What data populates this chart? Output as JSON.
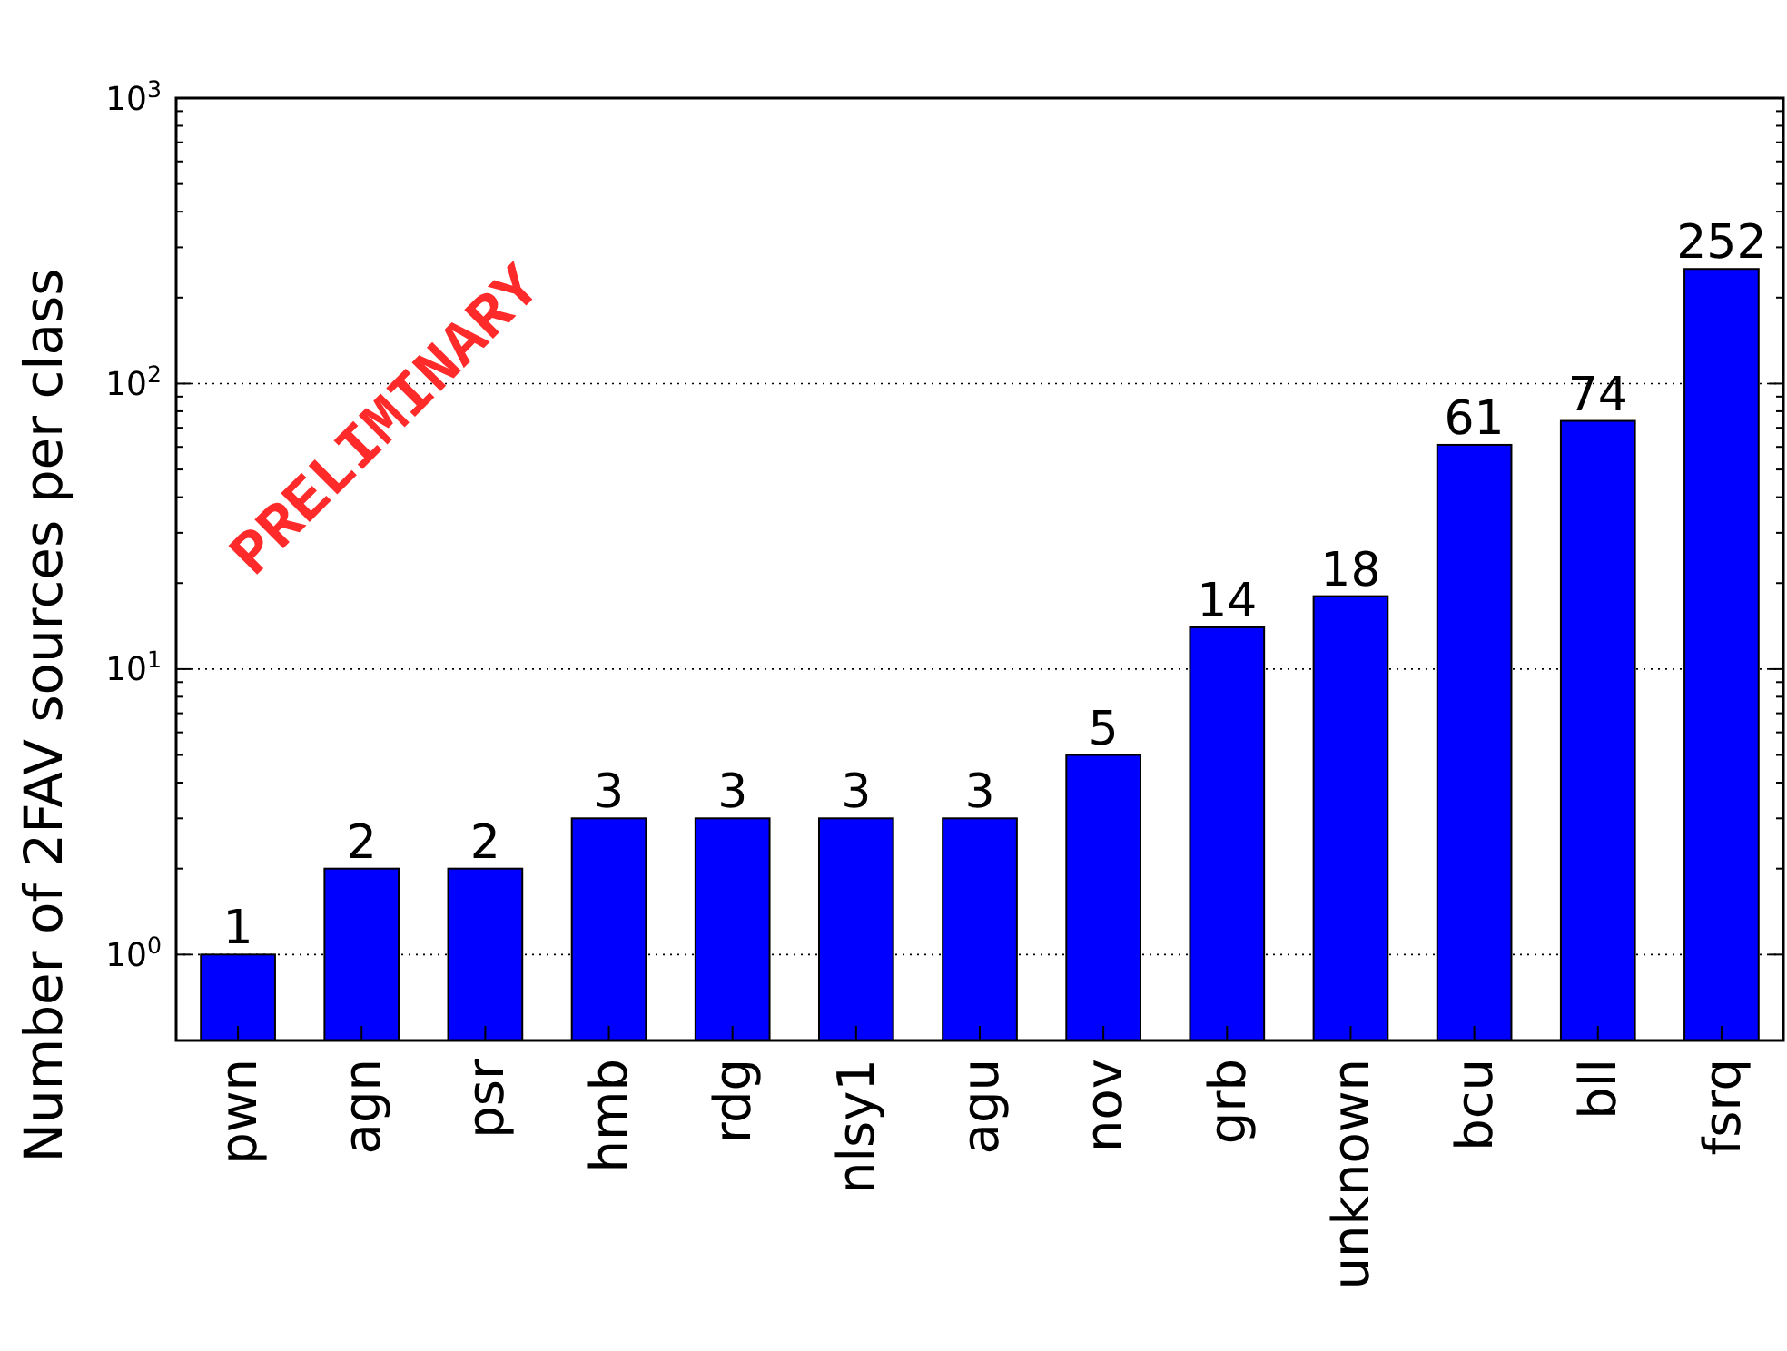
{
  "chart_data": {
    "type": "bar",
    "ylabel": "Number of 2FAV sources per class",
    "categories": [
      "pwn",
      "agn",
      "psr",
      "hmb",
      "rdg",
      "nlsy1",
      "agu",
      "nov",
      "grb",
      "unknown",
      "bcu",
      "bll",
      "fsrq"
    ],
    "values": [
      1,
      2,
      2,
      3,
      3,
      3,
      3,
      5,
      14,
      18,
      61,
      74,
      252
    ],
    "color": "#0000ff",
    "data_labels": true,
    "log": true,
    "ylim": [
      0.5,
      1000
    ],
    "yticks": [
      {
        "value": 1,
        "label": "10$^{0}$"
      },
      {
        "value": 10,
        "label": "10$^{1}$"
      },
      {
        "value": 100,
        "label": "10$^{2}$"
      },
      {
        "value": 1000,
        "label": "10$^{3}$"
      }
    ],
    "grid": "y",
    "annotations": [
      "PRELIMINARY"
    ]
  }
}
